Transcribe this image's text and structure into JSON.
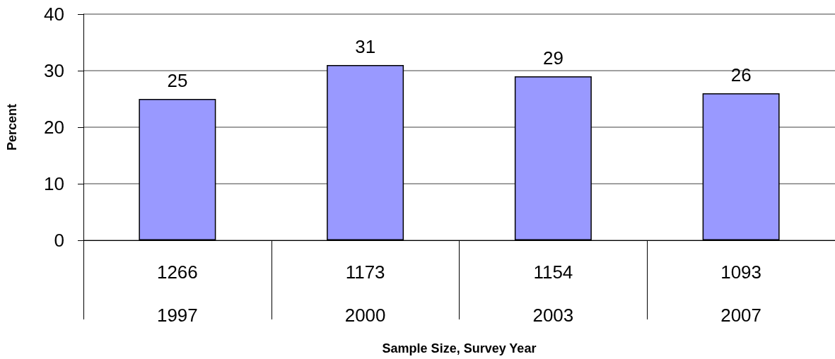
{
  "chart_data": {
    "type": "bar",
    "xlabel": "Sample Size, Survey Year",
    "ylabel": "Percent",
    "categories": [
      "1266\n1997",
      "1173\n2000",
      "1154\n2003",
      "1093\n2007"
    ],
    "values": [
      25,
      31,
      29,
      26
    ],
    "color": "#9999ff",
    "ylim": [
      0,
      40
    ],
    "yticks": [
      0,
      10,
      20,
      30,
      40
    ],
    "grid": "y",
    "data_labels": true
  }
}
